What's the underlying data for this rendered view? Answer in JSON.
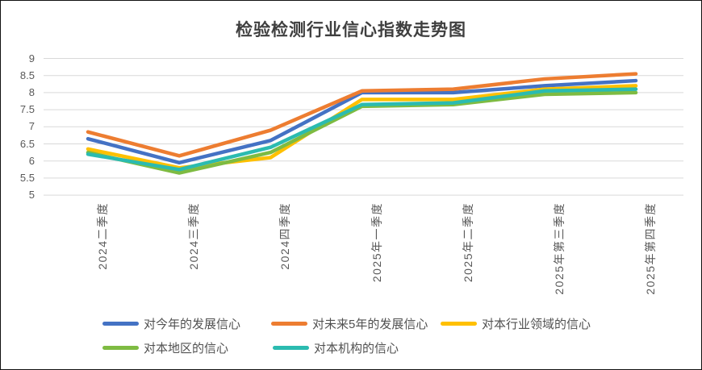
{
  "chart": {
    "title": "检验检测行业信心指数走势图"
  },
  "chart_data": {
    "type": "line",
    "title": "检验检测行业信心指数走势图",
    "categories": [
      "2024二季度",
      "2024三季度",
      "2024四季度",
      "2025年一季度",
      "2025年二季度",
      "2025年第三季度",
      "2025年第四季度"
    ],
    "series": [
      {
        "name": "对今年的发展信心",
        "color": "#4472C4",
        "values": [
          6.65,
          5.95,
          6.6,
          8.0,
          8.0,
          8.2,
          8.35
        ]
      },
      {
        "name": "对未来5年的发展信心",
        "color": "#ED7D31",
        "values": [
          6.85,
          6.15,
          6.9,
          8.05,
          8.1,
          8.4,
          8.55
        ]
      },
      {
        "name": "对本行业领域的信心",
        "color": "#FFC000",
        "values": [
          6.35,
          5.8,
          6.1,
          7.8,
          7.8,
          8.1,
          8.2
        ]
      },
      {
        "name": "对本地区的信心",
        "color": "#7EBB42",
        "values": [
          6.25,
          5.65,
          6.25,
          7.6,
          7.65,
          7.95,
          8.0
        ]
      },
      {
        "name": "对本机构的信心",
        "color": "#2BBBB0",
        "values": [
          6.2,
          5.75,
          6.4,
          7.65,
          7.7,
          8.05,
          8.1
        ]
      }
    ],
    "xlabel": "",
    "ylabel": "",
    "ylim": [
      5,
      9
    ],
    "ytick_step": 0.5,
    "yticks": [
      "9",
      "8.5",
      "8",
      "7.5",
      "7",
      "6.5",
      "6",
      "5.5",
      "5"
    ],
    "grid": "horizontal",
    "gridline_color": "#D9D9D9",
    "legend_position": "bottom",
    "legend_rows": [
      [
        0,
        1,
        2
      ],
      [
        3,
        4
      ]
    ]
  }
}
